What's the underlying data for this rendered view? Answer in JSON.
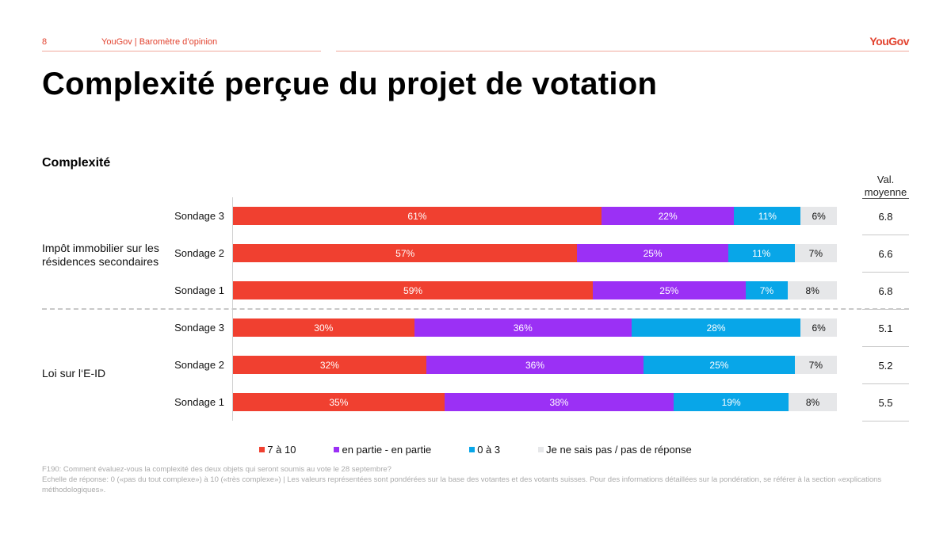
{
  "header": {
    "page_number": "8",
    "source": "YouGov | Baromètre d’opinion",
    "logo": "YouGov"
  },
  "title": "Complexité perçue du projet de votation",
  "subtitle": "Complexité",
  "avg_header": [
    "Val.",
    "moyenne"
  ],
  "colors": {
    "7 à 10": "#f04030",
    "en partie - en partie": "#9b30f5",
    "0 à 3": "#08a6e8",
    "Je ne sais pas / pas de réponse": "#e6e7e9"
  },
  "chart_data": {
    "type": "bar",
    "orientation": "horizontal",
    "stacked": true,
    "title": "Complexité",
    "legend_position": "bottom",
    "series_names": [
      "7 à 10",
      "en partie - en partie",
      "0 à 3",
      "Je ne sais pas / pas de réponse"
    ],
    "groups": [
      {
        "label": "Impôt immobilier sur les résidences secondaires",
        "rows": [
          {
            "label": "Sondage 3",
            "values": [
              61,
              22,
              11,
              6
            ],
            "avg": "6.8"
          },
          {
            "label": "Sondage 2",
            "values": [
              57,
              25,
              11,
              7
            ],
            "avg": "6.6"
          },
          {
            "label": "Sondage 1",
            "values": [
              59,
              25,
              7,
              8
            ],
            "avg": "6.8"
          }
        ]
      },
      {
        "label": "Loi sur l‘E-ID",
        "rows": [
          {
            "label": "Sondage 3",
            "values": [
              30,
              36,
              28,
              6
            ],
            "avg": "5.1"
          },
          {
            "label": "Sondage 2",
            "values": [
              32,
              36,
              25,
              7
            ],
            "avg": "5.2"
          },
          {
            "label": "Sondage 1",
            "values": [
              35,
              38,
              19,
              8
            ],
            "avg": "5.5"
          }
        ]
      }
    ],
    "xlim": [
      0,
      100
    ]
  },
  "footnote": [
    "F190: Comment évaluez-vous la complexité des deux objets qui seront soumis au vote le 28 septembre?",
    "Echelle de réponse: 0 («pas du tout complexe») à 10 («très complexe») | Les valeurs représentées sont pondérées sur la base des votantes et des votants suisses. Pour des informations détaillées sur la pondération, se référer à la section «explications méthodologiques»."
  ]
}
